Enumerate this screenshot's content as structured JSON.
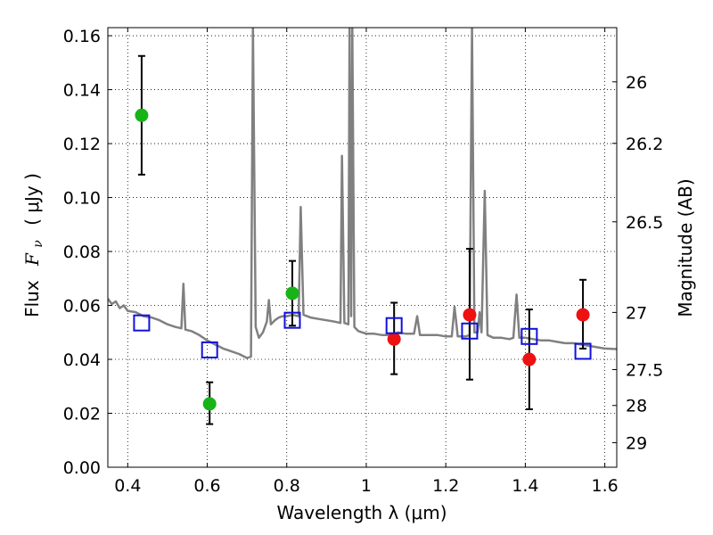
{
  "chart_data": {
    "type": "scatter",
    "xlabel": "Wavelength  λ (μm)",
    "ylabel_text": "Flux",
    "ylabel_math": "F",
    "ylabel_math_sub": "ν",
    "ylabel_unit": "( μJy )",
    "y2label": "Magnitude (AB)",
    "xlim": [
      0.35,
      1.63
    ],
    "ylim": [
      0.0,
      0.163
    ],
    "grid": true,
    "x_ticks": [
      {
        "value": 0.4,
        "label": "0.4"
      },
      {
        "value": 0.6,
        "label": "0.6"
      },
      {
        "value": 0.8,
        "label": "0.8"
      },
      {
        "value": 1.0,
        "label": "1"
      },
      {
        "value": 1.2,
        "label": "1.2"
      },
      {
        "value": 1.4,
        "label": "1.4"
      },
      {
        "value": 1.6,
        "label": "1.6"
      }
    ],
    "y_ticks": [
      {
        "value": 0.0,
        "label": "0.00"
      },
      {
        "value": 0.02,
        "label": "0.02"
      },
      {
        "value": 0.04,
        "label": "0.04"
      },
      {
        "value": 0.06,
        "label": "0.06"
      },
      {
        "value": 0.08,
        "label": "0.08"
      },
      {
        "value": 0.1,
        "label": "0.10"
      },
      {
        "value": 0.12,
        "label": "0.12"
      },
      {
        "value": 0.14,
        "label": "0.14"
      },
      {
        "value": 0.16,
        "label": "0.16"
      }
    ],
    "y2_ticks": [
      {
        "flux": 0.1429,
        "label": "26"
      },
      {
        "flux": 0.1201,
        "label": "26.2"
      },
      {
        "flux": 0.091,
        "label": "26.5"
      },
      {
        "flux": 0.0574,
        "label": "27"
      },
      {
        "flux": 0.0362,
        "label": "27.5"
      },
      {
        "flux": 0.0229,
        "label": "28"
      },
      {
        "flux": 0.0091,
        "label": "29"
      }
    ],
    "series": [
      {
        "kind": "observed_green",
        "color": "#17b317",
        "points": [
          {
            "x": 0.435,
            "y": 0.1305,
            "lo": 0.1085,
            "hi": 0.1525
          },
          {
            "x": 0.606,
            "y": 0.0235,
            "lo": 0.016,
            "hi": 0.0315
          },
          {
            "x": 0.814,
            "y": 0.0645,
            "lo": 0.0525,
            "hi": 0.0765
          }
        ]
      },
      {
        "kind": "observed_red",
        "color": "#ee1111",
        "points": [
          {
            "x": 1.07,
            "y": 0.0475,
            "lo": 0.0345,
            "hi": 0.061
          },
          {
            "x": 1.26,
            "y": 0.0565,
            "lo": 0.0325,
            "hi": 0.081
          },
          {
            "x": 1.41,
            "y": 0.04,
            "lo": 0.0215,
            "hi": 0.0585
          },
          {
            "x": 1.545,
            "y": 0.0565,
            "lo": 0.044,
            "hi": 0.0695
          }
        ]
      },
      {
        "kind": "model_squares",
        "color": "#1111dd",
        "points": [
          {
            "x": 0.435,
            "y": 0.0535
          },
          {
            "x": 0.606,
            "y": 0.0435
          },
          {
            "x": 0.814,
            "y": 0.0545
          },
          {
            "x": 1.07,
            "y": 0.0525
          },
          {
            "x": 1.26,
            "y": 0.0505
          },
          {
            "x": 1.41,
            "y": 0.0485
          },
          {
            "x": 1.545,
            "y": 0.043
          }
        ]
      }
    ],
    "model_spectrum": {
      "color": "#808080",
      "points": [
        [
          0.35,
          0.0625
        ],
        [
          0.36,
          0.0605
        ],
        [
          0.37,
          0.0615
        ],
        [
          0.38,
          0.059
        ],
        [
          0.39,
          0.06
        ],
        [
          0.4,
          0.058
        ],
        [
          0.42,
          0.0575
        ],
        [
          0.44,
          0.056
        ],
        [
          0.46,
          0.0555
        ],
        [
          0.48,
          0.0545
        ],
        [
          0.5,
          0.053
        ],
        [
          0.52,
          0.052
        ],
        [
          0.535,
          0.0515
        ],
        [
          0.54,
          0.068
        ],
        [
          0.545,
          0.051
        ],
        [
          0.56,
          0.0505
        ],
        [
          0.58,
          0.049
        ],
        [
          0.6,
          0.047
        ],
        [
          0.62,
          0.0455
        ],
        [
          0.64,
          0.044
        ],
        [
          0.66,
          0.043
        ],
        [
          0.68,
          0.042
        ],
        [
          0.7,
          0.0405
        ],
        [
          0.71,
          0.041
        ],
        [
          0.715,
          0.163
        ],
        [
          0.722,
          0.052
        ],
        [
          0.73,
          0.048
        ],
        [
          0.74,
          0.05
        ],
        [
          0.75,
          0.054
        ],
        [
          0.755,
          0.062
        ],
        [
          0.76,
          0.053
        ],
        [
          0.77,
          0.0545
        ],
        [
          0.78,
          0.0555
        ],
        [
          0.79,
          0.056
        ],
        [
          0.8,
          0.056
        ],
        [
          0.815,
          0.0565
        ],
        [
          0.83,
          0.056
        ],
        [
          0.835,
          0.0965
        ],
        [
          0.842,
          0.0565
        ],
        [
          0.86,
          0.0555
        ],
        [
          0.88,
          0.055
        ],
        [
          0.9,
          0.0545
        ],
        [
          0.92,
          0.054
        ],
        [
          0.935,
          0.0535
        ],
        [
          0.939,
          0.1155
        ],
        [
          0.945,
          0.0535
        ],
        [
          0.955,
          0.053
        ],
        [
          0.958,
          0.163
        ],
        [
          0.962,
          0.056
        ],
        [
          0.965,
          0.163
        ],
        [
          0.97,
          0.052
        ],
        [
          0.98,
          0.0505
        ],
        [
          1.0,
          0.0495
        ],
        [
          1.02,
          0.0495
        ],
        [
          1.04,
          0.049
        ],
        [
          1.06,
          0.049
        ],
        [
          1.08,
          0.05
        ],
        [
          1.1,
          0.0495
        ],
        [
          1.12,
          0.0495
        ],
        [
          1.128,
          0.056
        ],
        [
          1.135,
          0.049
        ],
        [
          1.16,
          0.049
        ],
        [
          1.18,
          0.049
        ],
        [
          1.2,
          0.0485
        ],
        [
          1.215,
          0.0485
        ],
        [
          1.222,
          0.0595
        ],
        [
          1.23,
          0.0485
        ],
        [
          1.25,
          0.0485
        ],
        [
          1.26,
          0.049
        ],
        [
          1.266,
          0.163
        ],
        [
          1.272,
          0.05
        ],
        [
          1.28,
          0.05
        ],
        [
          1.285,
          0.0575
        ],
        [
          1.29,
          0.05
        ],
        [
          1.298,
          0.1025
        ],
        [
          1.305,
          0.049
        ],
        [
          1.32,
          0.048
        ],
        [
          1.34,
          0.048
        ],
        [
          1.36,
          0.0475
        ],
        [
          1.37,
          0.048
        ],
        [
          1.378,
          0.064
        ],
        [
          1.385,
          0.048
        ],
        [
          1.4,
          0.048
        ],
        [
          1.42,
          0.0475
        ],
        [
          1.44,
          0.047
        ],
        [
          1.46,
          0.047
        ],
        [
          1.48,
          0.0465
        ],
        [
          1.5,
          0.046
        ],
        [
          1.52,
          0.046
        ],
        [
          1.54,
          0.0455
        ],
        [
          1.56,
          0.045
        ],
        [
          1.58,
          0.0445
        ],
        [
          1.6,
          0.044
        ],
        [
          1.63,
          0.0438
        ]
      ]
    }
  }
}
